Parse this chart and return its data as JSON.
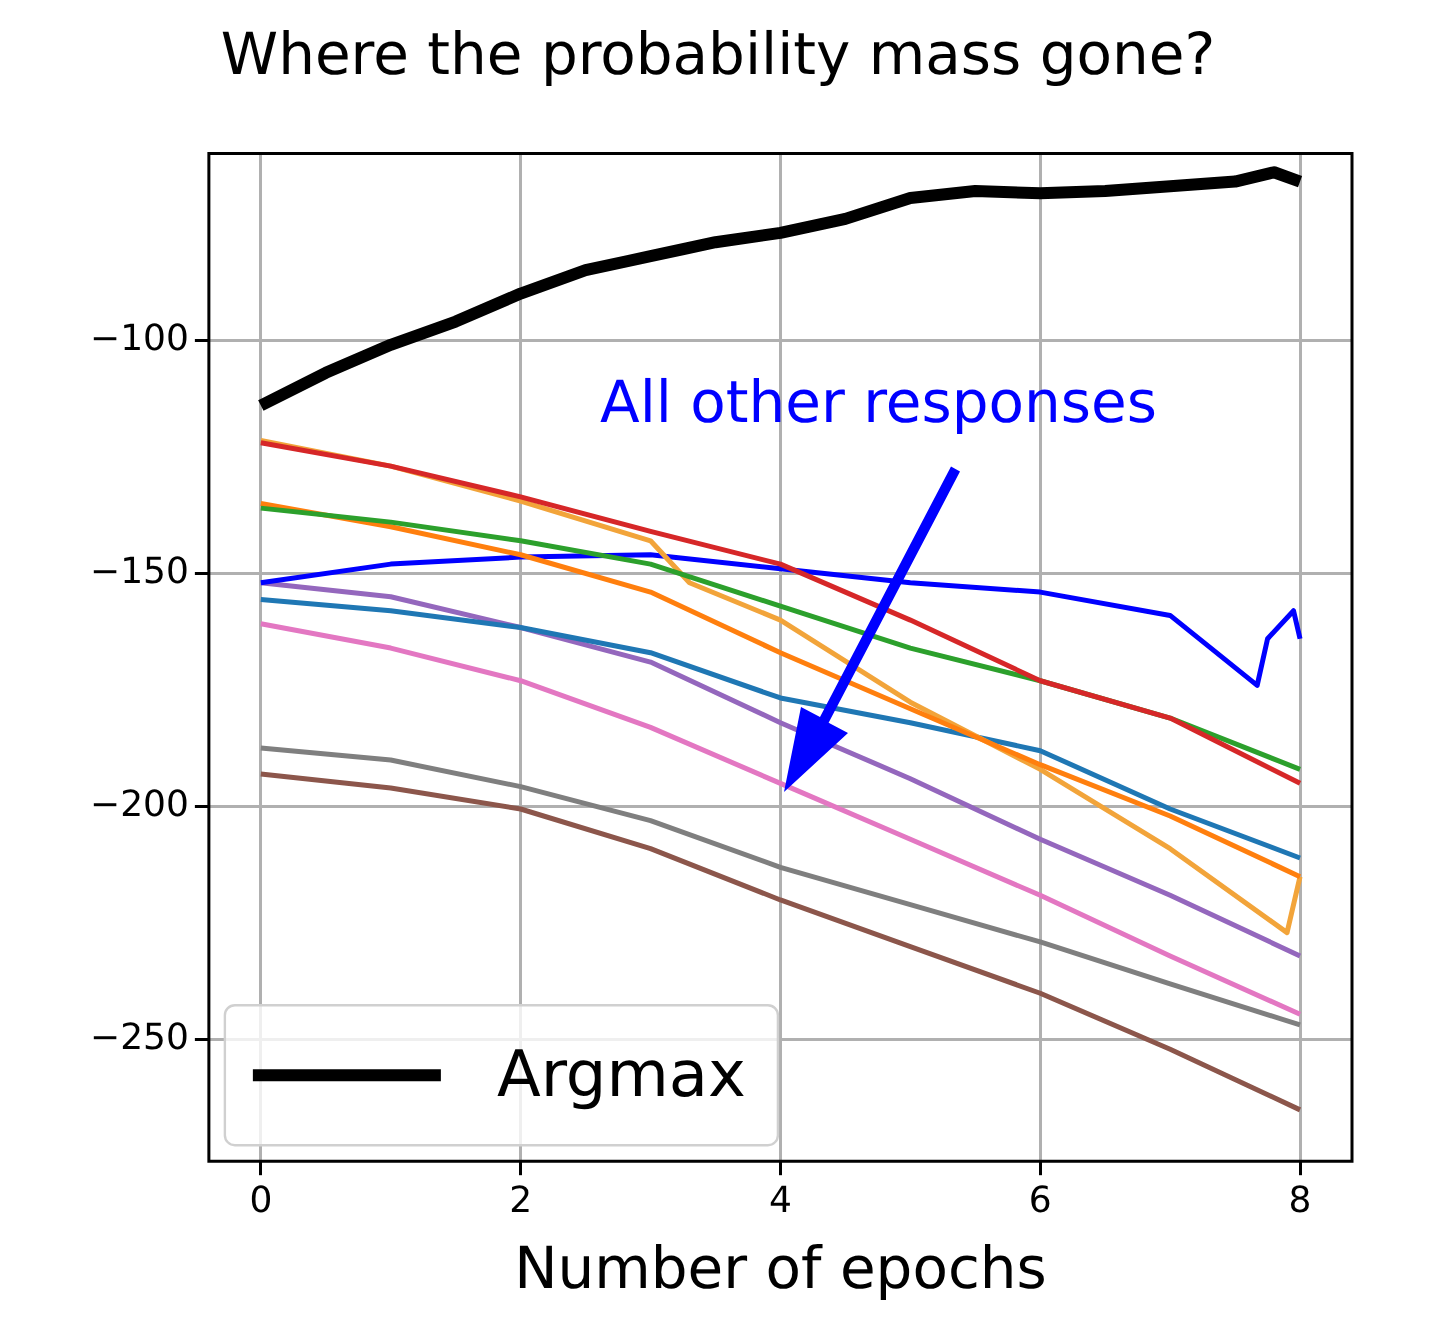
{
  "chart_data": {
    "type": "line",
    "title": "Where the probability mass gone?",
    "xlabel": "Number of epochs",
    "x": [
      0,
      1,
      2,
      3,
      4,
      5,
      6,
      7,
      8
    ],
    "series": [
      {
        "name": "Argmax",
        "color": "#000000",
        "x": [
          0,
          0.5,
          1,
          1.5,
          2,
          2.5,
          3,
          3.5,
          4,
          4.5,
          5,
          5.5,
          6,
          6.5,
          7,
          7.5,
          7.8,
          8
        ],
        "values": [
          -114,
          -107,
          -101,
          -96,
          -90,
          -85,
          -82,
          -79,
          -77,
          -74,
          -69.5,
          -68,
          -68.5,
          -68,
          -67,
          -66,
          -64,
          -66
        ]
      },
      {
        "color": "#d62728",
        "values": [
          -122,
          -127,
          -133.6,
          -141,
          -148,
          -160,
          -173,
          -181,
          -195
        ]
      },
      {
        "color": "#2ca02c",
        "values": [
          -136,
          -139,
          -143,
          -148,
          -157,
          -166,
          -173,
          -181,
          -192
        ]
      },
      {
        "color": "#ff7f0e",
        "values": [
          -135,
          -140,
          -146,
          -154,
          -167,
          -179,
          -191,
          -202,
          -215
        ]
      },
      {
        "color": "#f2a43a",
        "x": [
          0,
          1,
          2,
          3,
          3.3,
          4,
          5,
          6,
          7,
          7.9,
          8
        ],
        "values": [
          -121.5,
          -127,
          -134.5,
          -143,
          -152,
          -160,
          -177.6,
          -192,
          -209,
          -227,
          -215
        ]
      },
      {
        "color": "#0000ff",
        "x": [
          0,
          1,
          2,
          3,
          4,
          5,
          6,
          7,
          7.67,
          7.75,
          7.95,
          8
        ],
        "values": [
          -152,
          -148,
          -146.5,
          -146,
          -149,
          -152,
          -154,
          -159,
          -174,
          -164,
          -158,
          -164
        ]
      },
      {
        "color": "#1f77b4",
        "values": [
          -155.6,
          -158,
          -161.6,
          -167,
          -176.7,
          -182,
          -188,
          -200.5,
          -211
        ]
      },
      {
        "color": "#9467bd",
        "values": [
          -152,
          -155,
          -161.6,
          -169,
          -182,
          -194,
          -207,
          -219,
          -232
        ]
      },
      {
        "color": "#e377c2",
        "values": [
          -160.8,
          -166,
          -173,
          -183,
          -195,
          -207,
          -219,
          -232,
          -244.5
        ]
      },
      {
        "color": "#7f7f7f",
        "values": [
          -187.4,
          -190,
          -195.7,
          -203,
          -213,
          -221,
          -229,
          -238,
          -246.8
        ]
      },
      {
        "color": "#8c564b",
        "values": [
          -193,
          -196,
          -200.5,
          -209,
          -220,
          -230,
          -240,
          -252,
          -265
        ]
      }
    ],
    "xlim": [
      -0.4,
      8.4
    ],
    "xticks": [
      0,
      2,
      4,
      6,
      8
    ],
    "ylim": [
      -276,
      -60
    ],
    "yticks": [
      {
        "value": -250,
        "label": "−250"
      },
      {
        "value": -200,
        "label": "−200"
      },
      {
        "value": -150,
        "label": "−150"
      },
      {
        "value": -100,
        "label": "−100"
      }
    ],
    "grid": true,
    "legend": "bottom left",
    "annotations": [
      "All other responses"
    ]
  }
}
